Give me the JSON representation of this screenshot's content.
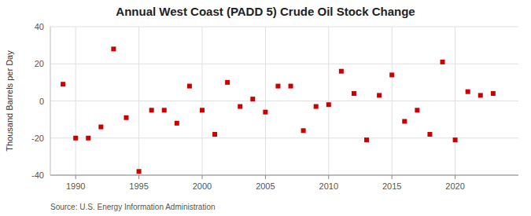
{
  "chart_data": {
    "type": "scatter",
    "title": "Annual West Coast (PADD 5) Crude Oil Stock Change",
    "ylabel": "Thousand Barrels per Day",
    "source": "Source: U.S. Energy Information Administration",
    "x": [
      1989,
      1990,
      1991,
      1992,
      1993,
      1994,
      1995,
      1996,
      1997,
      1998,
      1999,
      2000,
      2001,
      2002,
      2003,
      2004,
      2005,
      2006,
      2007,
      2008,
      2009,
      2010,
      2011,
      2012,
      2013,
      2014,
      2015,
      2016,
      2017,
      2018,
      2019,
      2020,
      2021,
      2022,
      2023
    ],
    "values": [
      9,
      -20,
      -20,
      -14,
      28,
      -9,
      -38,
      -5,
      -5,
      -12,
      8,
      -5,
      -18,
      10,
      -3,
      1,
      -6,
      8,
      8,
      -16,
      -3,
      -2,
      16,
      4,
      -21,
      3,
      14,
      -11,
      -5,
      -18,
      21,
      -21,
      5,
      3,
      4
    ],
    "color": "#cc0000",
    "marker": "square",
    "xlim": [
      1988.0,
      2025.0
    ],
    "ylim": [
      -40,
      40
    ],
    "xticks": [
      1990,
      1995,
      2000,
      2005,
      2010,
      2015,
      2020
    ],
    "yticks": [
      -40,
      -20,
      0,
      20,
      40
    ],
    "grid": true
  }
}
